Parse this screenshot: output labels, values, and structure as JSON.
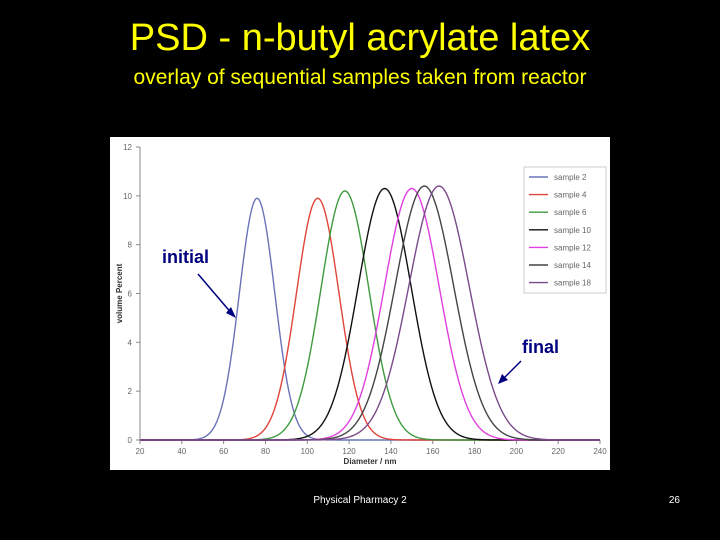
{
  "slide": {
    "title": "PSD - n-butyl acrylate latex",
    "subtitle": "overlay of sequential samples taken from reactor",
    "footer": "Physical Pharmacy 2",
    "page_number": "26"
  },
  "annotations": {
    "initial": "initial",
    "final": "final"
  },
  "chart_data": {
    "type": "line",
    "xlabel": "Diameter / nm",
    "ylabel": "volume Percent",
    "xlim": [
      20,
      240
    ],
    "ylim": [
      0,
      12
    ],
    "xticks": [
      20,
      40,
      60,
      80,
      100,
      120,
      140,
      160,
      180,
      200,
      220,
      240
    ],
    "yticks": [
      0,
      2,
      4,
      6,
      8,
      10,
      12
    ],
    "legend_position": "top-right",
    "grid": false,
    "series": [
      {
        "name": "sample 2",
        "color": "#6a73b8",
        "peak_x": 76,
        "peak_y": 9.9,
        "width": 20
      },
      {
        "name": "sample 4",
        "color": "#e0443a",
        "peak_x": 105,
        "peak_y": 9.9,
        "width": 24
      },
      {
        "name": "sample 6",
        "color": "#3f9a3f",
        "peak_x": 118,
        "peak_y": 10.2,
        "width": 27
      },
      {
        "name": "sample 10",
        "color": "#111111",
        "peak_x": 137,
        "peak_y": 10.3,
        "width": 30
      },
      {
        "name": "sample 12",
        "color": "#e040e0",
        "peak_x": 150,
        "peak_y": 10.3,
        "width": 31
      },
      {
        "name": "sample 14",
        "color": "#444444",
        "peak_x": 156,
        "peak_y": 10.4,
        "width": 33
      },
      {
        "name": "sample 18",
        "color": "#7a4a8a",
        "peak_x": 163,
        "peak_y": 10.4,
        "width": 34
      }
    ]
  }
}
